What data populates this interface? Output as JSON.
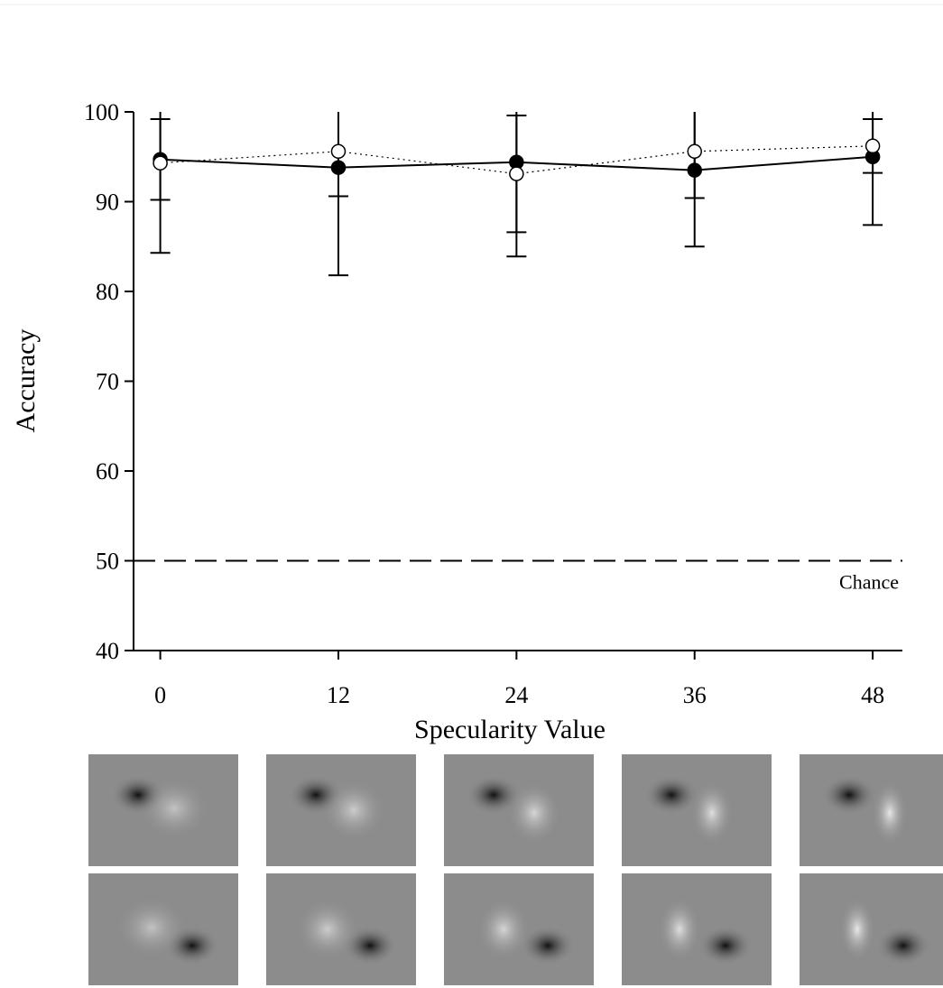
{
  "chart_data": {
    "type": "errorbar-line",
    "x_label": "Specularity Value",
    "y_label": "Accuracy",
    "x": [
      0,
      12,
      24,
      36,
      48
    ],
    "series": [
      {
        "color": "#000000",
        "marker": "filled",
        "line_style": "solid",
        "values": [
          94.7,
          93.8,
          94.4,
          93.5,
          95.0
        ],
        "errors": [
          4.5,
          12.0,
          10.5,
          8.5,
          7.6
        ]
      },
      {
        "color": "#000000",
        "marker": "open",
        "line_style": "dotted",
        "values": [
          94.3,
          95.6,
          93.1,
          95.6,
          96.2
        ],
        "errors": [
          10.0,
          5.0,
          6.5,
          5.2,
          3.0
        ]
      }
    ],
    "reference_line": {
      "value": 50,
      "label": "Chance"
    },
    "xlim": [
      -1.8,
      50
    ],
    "xticks": [
      0,
      12,
      24,
      36,
      48
    ],
    "ylim": [
      40,
      100
    ],
    "yticks": [
      40,
      50,
      60,
      70,
      80,
      90,
      100
    ]
  }
}
